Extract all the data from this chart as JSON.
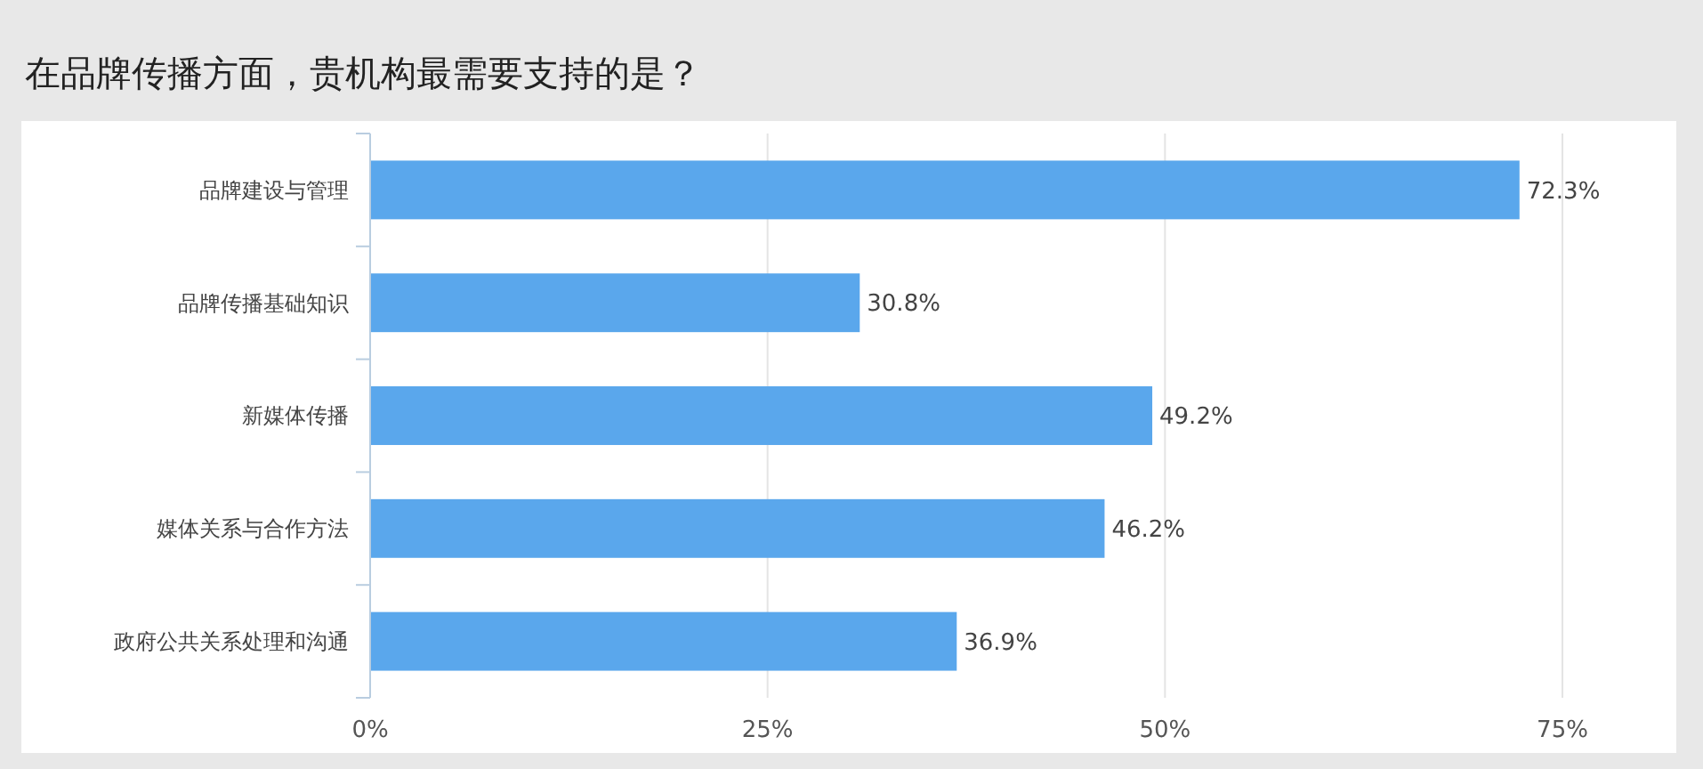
{
  "chart_data": {
    "type": "bar",
    "orientation": "horizontal",
    "title": "在品牌传播方面，贵机构最需要支持的是？",
    "categories": [
      "品牌建设与管理",
      "品牌传播基础知识",
      "新媒体传播",
      "媒体关系与合作方法",
      "政府公共关系处理和沟通"
    ],
    "values": [
      72.3,
      30.8,
      49.2,
      46.2,
      36.9
    ],
    "value_labels": [
      "72.3%",
      "30.8%",
      "49.2%",
      "46.2%",
      "36.9%"
    ],
    "color": "#5aa7ec",
    "xlim": [
      0,
      75
    ],
    "xticks": [
      {
        "value": 0,
        "label": "0%"
      },
      {
        "value": 25,
        "label": "25%"
      },
      {
        "value": 50,
        "label": "50%"
      },
      {
        "value": 75,
        "label": "75%"
      }
    ],
    "grid": "x"
  }
}
